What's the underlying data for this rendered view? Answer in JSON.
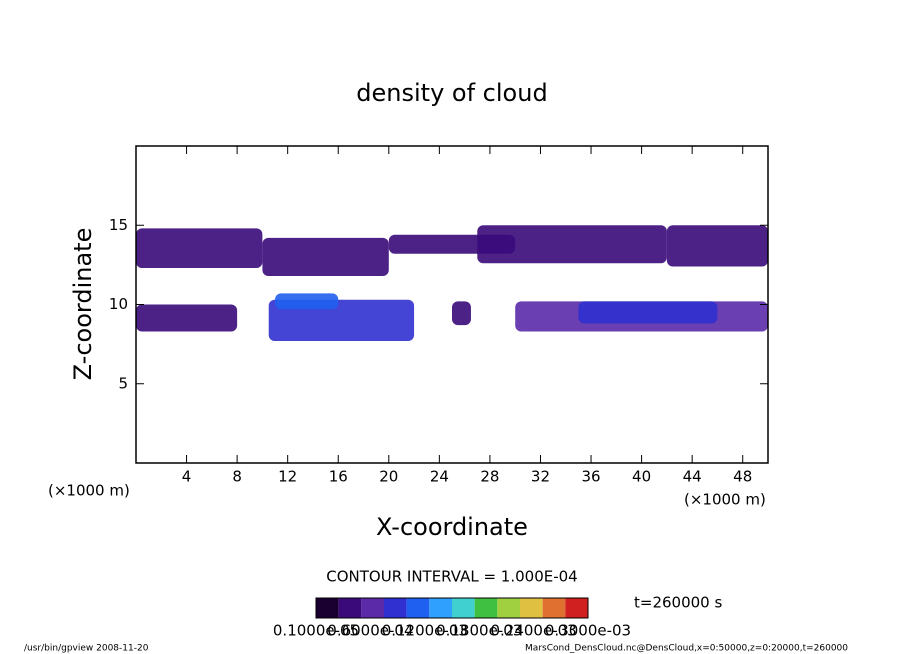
{
  "chart_data": {
    "type": "contour",
    "title": "density of cloud",
    "xlabel": "X-coordinate",
    "ylabel": "Z-coordinate",
    "xunit_left": "(×1000 m)",
    "xunit_right": "(×1000 m)",
    "xlim": [
      0,
      50
    ],
    "ylim": [
      0,
      20
    ],
    "xticks": [
      4,
      8,
      12,
      16,
      20,
      24,
      28,
      32,
      36,
      40,
      44,
      48
    ],
    "yticks": [
      5,
      10,
      15
    ],
    "clim": [
      0,
      0.0003
    ],
    "colormap": [
      "#1a0030",
      "#3a0a7a",
      "#5a2aa8",
      "#3030d0",
      "#2060f0",
      "#30a0ff",
      "#40d0d0",
      "#40c040",
      "#a0d040",
      "#e0c040",
      "#e07030",
      "#d02020"
    ],
    "regions": [
      {
        "x": [
          0,
          10
        ],
        "z": [
          12.3,
          14.8
        ],
        "level": 3e-05
      },
      {
        "x": [
          10,
          20
        ],
        "z": [
          11.8,
          14.2
        ],
        "level": 3e-05
      },
      {
        "x": [
          20,
          30
        ],
        "z": [
          13.2,
          14.4
        ],
        "level": 2e-05
      },
      {
        "x": [
          27,
          42
        ],
        "z": [
          12.6,
          15
        ],
        "level": 4e-05
      },
      {
        "x": [
          42,
          50
        ],
        "z": [
          12.4,
          15
        ],
        "level": 3e-05
      },
      {
        "x": [
          0,
          8
        ],
        "z": [
          8.3,
          10
        ],
        "level": 4e-05
      },
      {
        "x": [
          10.5,
          22
        ],
        "z": [
          7.7,
          10.3
        ],
        "level": 7e-05
      },
      {
        "x": [
          11,
          16
        ],
        "z": [
          9.7,
          10.7
        ],
        "level": 0.00011
      },
      {
        "x": [
          25,
          26.5
        ],
        "z": [
          8.7,
          10.2
        ],
        "level": 3e-05
      },
      {
        "x": [
          30,
          50
        ],
        "z": [
          8.3,
          10.2
        ],
        "level": 5e-05
      },
      {
        "x": [
          35,
          46
        ],
        "z": [
          8.8,
          10.2
        ],
        "level": 9e-05
      }
    ],
    "contour_interval": "CONTOUR INTERVAL = 1.000E-04",
    "time_label": "t=260000 s",
    "colorbar_labels": [
      "0.1000e-05",
      "0.6000e-04",
      "0.1200e-03",
      "0.1800e-03",
      "0.2400e-03",
      "0.3000e-03"
    ],
    "footer_left": "/usr/bin/gpview  2008-11-20",
    "footer_right": "MarsCond_DensCloud.nc@DensCloud,x=0:50000,z=0:20000,t=260000"
  }
}
